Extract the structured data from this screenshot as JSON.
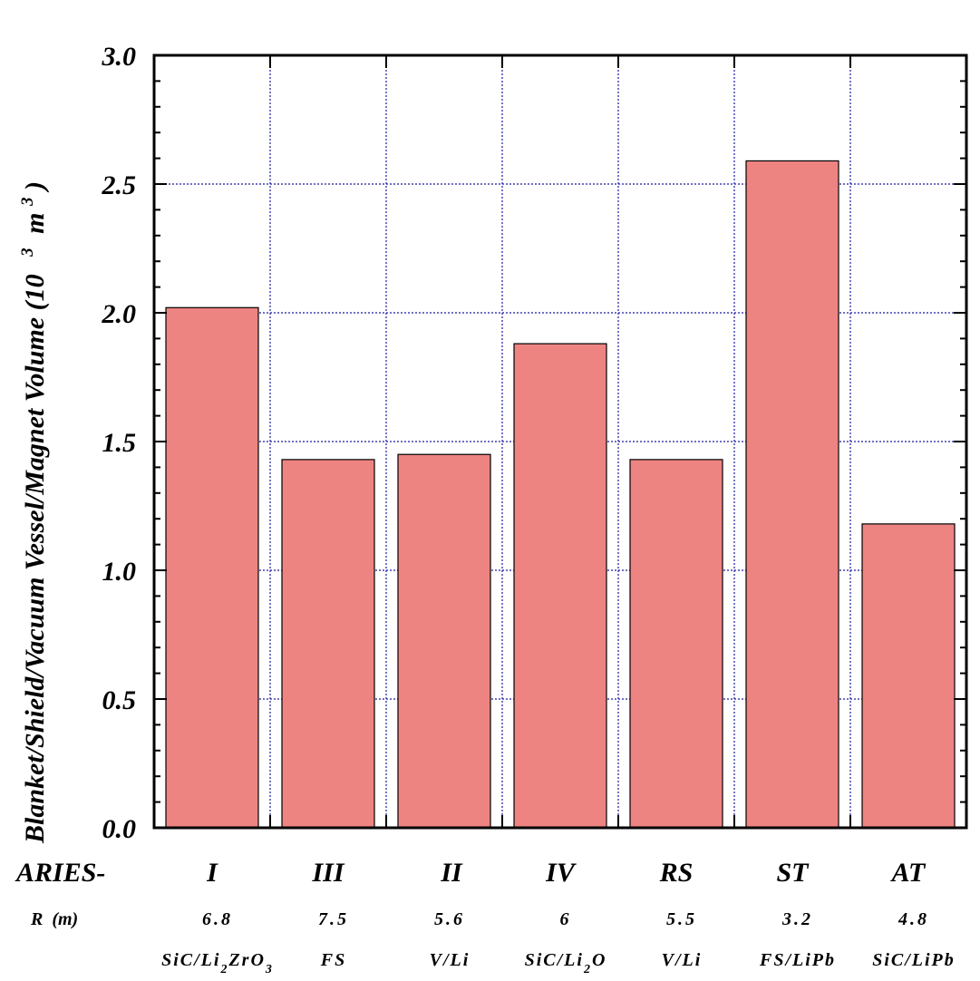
{
  "chart_data": {
    "type": "bar",
    "ylabel": "Blanket/Shield/Vacuum Vessel/Magnet Volume (10",
    "ylabel_sup": "3",
    "ylabel_unit": "m",
    "ylabel_unit_sup": "3",
    "ylabel_close": ")",
    "ylim": [
      0,
      3.0
    ],
    "yticks": [
      "0.0",
      "0.5",
      "1.0",
      "1.5",
      "2.0",
      "2.5",
      "3.0"
    ],
    "grid": true,
    "bar_color": "#EE8482",
    "grid_color": "#1a1aa0",
    "categories": [
      "I",
      "III",
      "II",
      "IV",
      "RS",
      "ST",
      "AT"
    ],
    "values": [
      2.02,
      1.43,
      1.45,
      1.88,
      1.43,
      2.59,
      1.18
    ],
    "row_headers": {
      "series": "ARIES-",
      "radius": "R  (m)"
    },
    "radius": [
      "6.8",
      "7.5",
      "5.6",
      "6",
      "5.5",
      "3.2",
      "4.8"
    ],
    "materials": [
      {
        "parts": [
          "SiC/Li",
          "2",
          "ZrO",
          "3"
        ]
      },
      {
        "parts": [
          "FS"
        ]
      },
      {
        "parts": [
          "V/Li"
        ]
      },
      {
        "parts": [
          "SiC/Li",
          "2",
          "O"
        ]
      },
      {
        "parts": [
          "V/Li"
        ]
      },
      {
        "parts": [
          "FS/LiPb"
        ]
      },
      {
        "parts": [
          "SiC/LiPb"
        ]
      }
    ]
  }
}
